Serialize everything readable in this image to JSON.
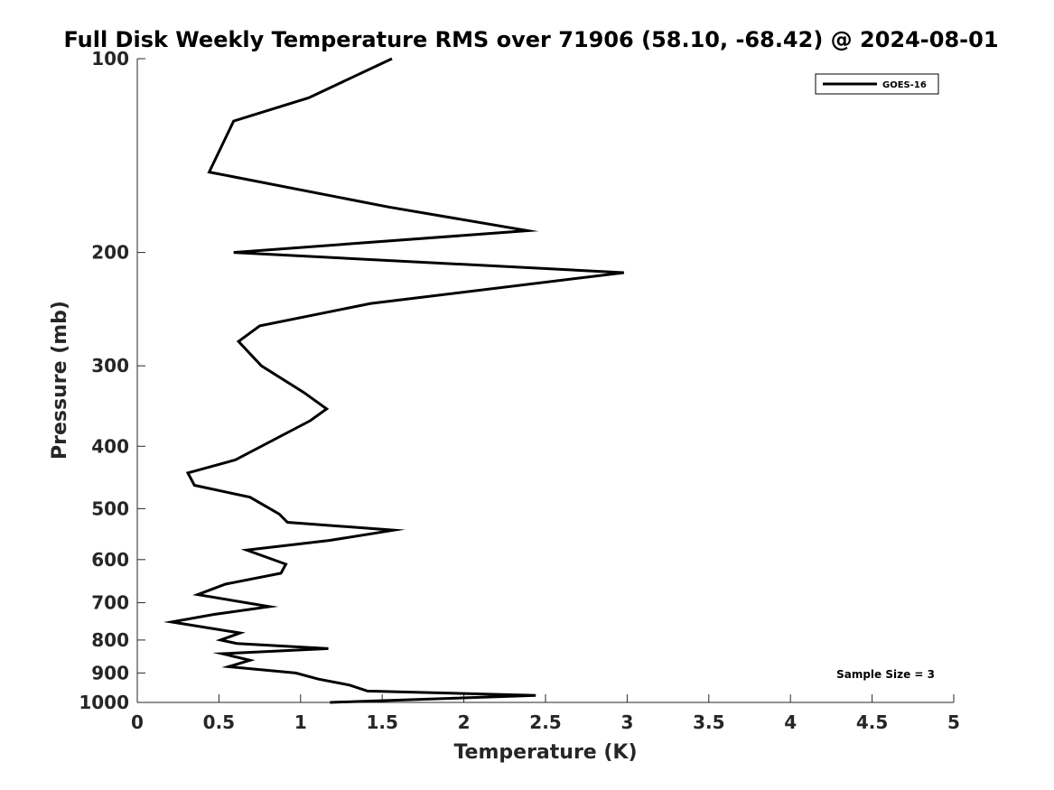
{
  "chart_data": {
    "type": "line",
    "title": "Full Disk Weekly Temperature RMS over 71906 (58.10, -68.42) @ 2024-08-01",
    "xlabel": "Temperature (K)",
    "ylabel": "Pressure (mb)",
    "xlim": [
      0,
      5
    ],
    "ylim": [
      100,
      1000
    ],
    "y_scale": "log",
    "y_reversed": true,
    "x_ticks": [
      "0",
      "0.5",
      "1",
      "1.5",
      "2",
      "2.5",
      "3",
      "3.5",
      "4",
      "4.5",
      "5"
    ],
    "y_ticks": [
      "100",
      "200",
      "300",
      "400",
      "500",
      "600",
      "700",
      "800",
      "900",
      "1000"
    ],
    "grid": false,
    "legend_position": "top-right",
    "annotation": "Sample Size = 3",
    "series": [
      {
        "name": "GOES-16",
        "color": "#000000",
        "points": [
          [
            1.56,
            100
          ],
          [
            1.05,
            115
          ],
          [
            0.59,
            125
          ],
          [
            0.44,
            150
          ],
          [
            1.54,
            170
          ],
          [
            2.39,
            185
          ],
          [
            0.59,
            200
          ],
          [
            2.98,
            215
          ],
          [
            1.43,
            240
          ],
          [
            0.75,
            260
          ],
          [
            0.62,
            275
          ],
          [
            0.76,
            300
          ],
          [
            1.02,
            330
          ],
          [
            1.16,
            350
          ],
          [
            1.06,
            365
          ],
          [
            0.6,
            420
          ],
          [
            0.31,
            440
          ],
          [
            0.35,
            460
          ],
          [
            0.69,
            480
          ],
          [
            0.87,
            510
          ],
          [
            0.92,
            525
          ],
          [
            1.57,
            540
          ],
          [
            1.18,
            560
          ],
          [
            0.67,
            580
          ],
          [
            0.91,
            610
          ],
          [
            0.88,
            630
          ],
          [
            0.54,
            655
          ],
          [
            0.37,
            680
          ],
          [
            0.81,
            710
          ],
          [
            0.47,
            730
          ],
          [
            0.21,
            750
          ],
          [
            0.63,
            780
          ],
          [
            0.51,
            800
          ],
          [
            0.61,
            810
          ],
          [
            1.17,
            825
          ],
          [
            0.52,
            840
          ],
          [
            0.69,
            860
          ],
          [
            0.56,
            880
          ],
          [
            0.97,
            900
          ],
          [
            1.11,
            920
          ],
          [
            1.3,
            940
          ],
          [
            1.41,
            960
          ],
          [
            2.44,
            975
          ],
          [
            1.18,
            1000
          ]
        ]
      }
    ]
  }
}
